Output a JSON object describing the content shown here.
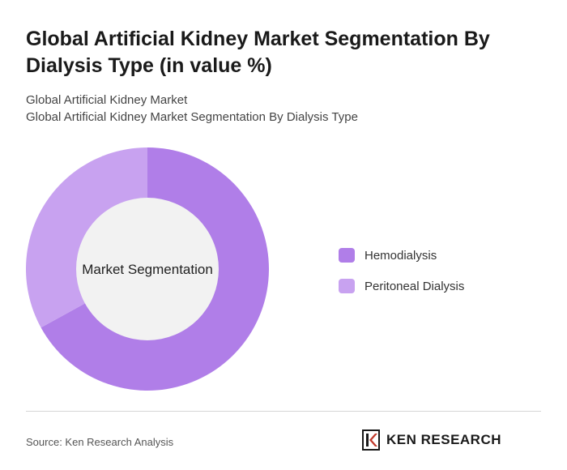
{
  "header": {
    "title": "Global Artificial Kidney Market Segmentation By Dialysis Type (in value %)",
    "subtitle_line1": "Global Artificial Kidney Market",
    "subtitle_line2": "Global Artificial Kidney Market Segmentation By Dialysis Type"
  },
  "chart_data": {
    "type": "pie",
    "donut": true,
    "center_label": "Market Segmentation",
    "categories": [
      "Hemodialysis",
      "Peritoneal Dialysis"
    ],
    "values": [
      67,
      33
    ],
    "colors": [
      "#b07ee8",
      "#c8a2f0"
    ],
    "legend_position": "right"
  },
  "footer": {
    "source": "Source: Ken Research Analysis",
    "logo_text": "KEN RESEARCH"
  },
  "colors": {
    "center_fill": "#f2f2f2",
    "divider": "#d6d6d6"
  }
}
